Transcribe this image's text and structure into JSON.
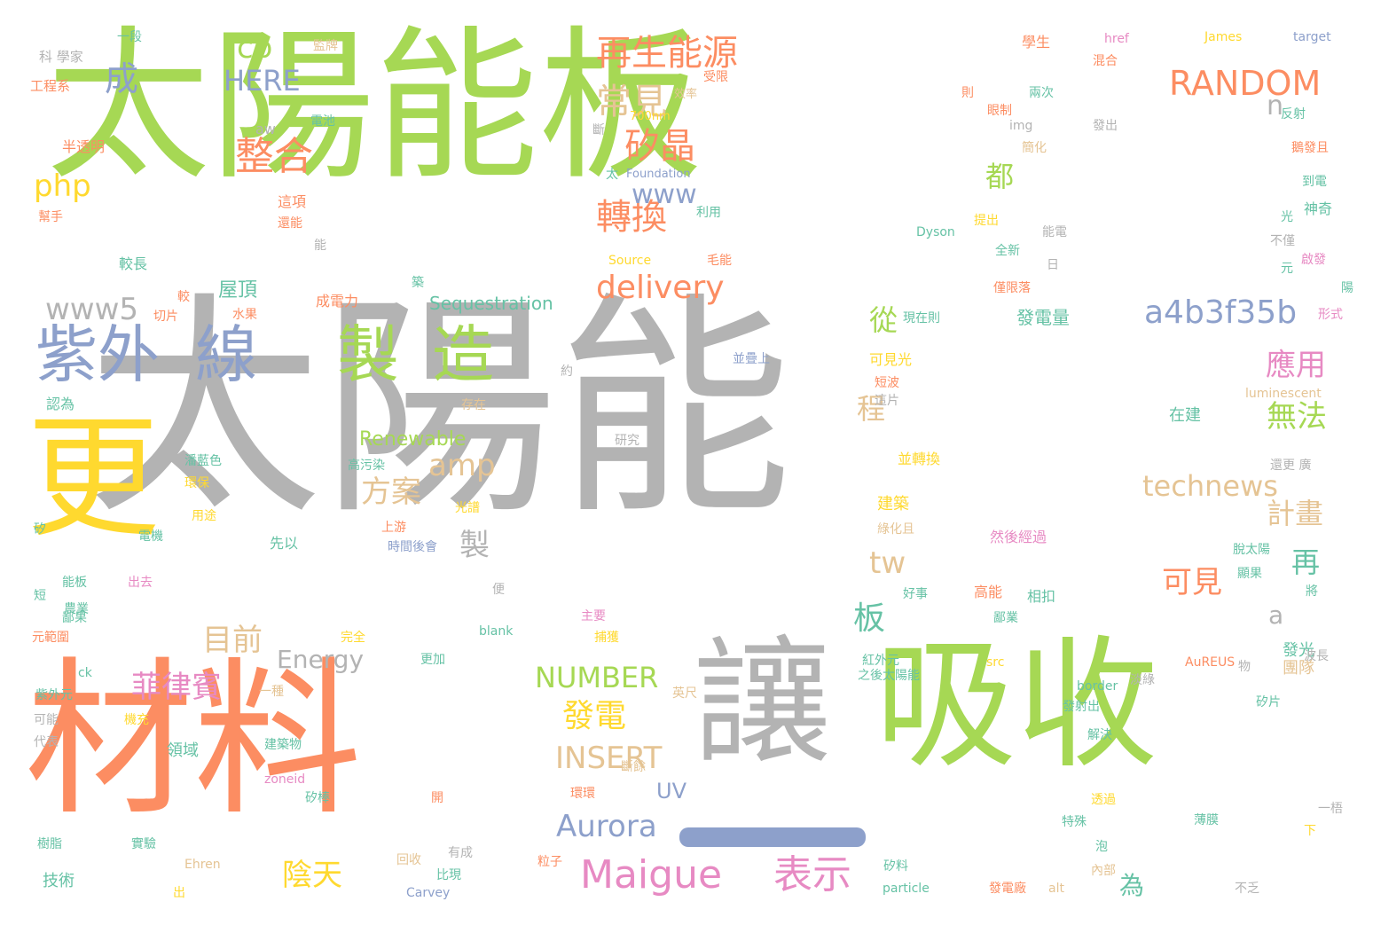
{
  "palette": {
    "green": "#a6d854",
    "gray": "#b3b3b3",
    "orange": "#fc8d62",
    "blue": "#8da0cb",
    "yellow": "#ffd92f",
    "tan": "#e5c494",
    "teal": "#66c2a5",
    "pink": "#e78ac3"
  },
  "underline_bar": "#8da0cb",
  "words": [
    {
      "t": "太陽能板",
      "c": "green"
    },
    {
      "t": "太陽能",
      "c": "gray"
    },
    {
      "t": "材料",
      "c": "orange"
    },
    {
      "t": "吸收",
      "c": "green"
    },
    {
      "t": "讓",
      "c": "gray"
    },
    {
      "t": "更",
      "c": "yellow"
    },
    {
      "t": "紫外",
      "c": "blue"
    },
    {
      "t": "線",
      "c": "blue"
    },
    {
      "t": "製",
      "c": "green"
    },
    {
      "t": "造",
      "c": "green"
    },
    {
      "t": "再生能源",
      "c": "orange"
    },
    {
      "t": "常見",
      "c": "tan"
    },
    {
      "t": "矽晶",
      "c": "orange"
    },
    {
      "t": "轉換",
      "c": "orange"
    },
    {
      "t": "整合",
      "c": "orange"
    },
    {
      "t": "www",
      "c": "blue"
    },
    {
      "t": "RANDOM",
      "c": "orange"
    },
    {
      "t": "n",
      "c": "gray"
    },
    {
      "t": "cb",
      "c": "green"
    },
    {
      "t": "成",
      "c": "blue"
    },
    {
      "t": "HERE",
      "c": "blue"
    },
    {
      "t": "php",
      "c": "yellow"
    },
    {
      "t": "www5",
      "c": "gray"
    },
    {
      "t": "delivery",
      "c": "orange"
    },
    {
      "t": "a4b3f35b",
      "c": "blue"
    },
    {
      "t": "都",
      "c": "green"
    },
    {
      "t": "從",
      "c": "green"
    },
    {
      "t": "應用",
      "c": "pink"
    },
    {
      "t": "無法",
      "c": "green"
    },
    {
      "t": "amp",
      "c": "tan"
    },
    {
      "t": "方案",
      "c": "tan"
    },
    {
      "t": "程",
      "c": "tan"
    },
    {
      "t": "technews",
      "c": "tan"
    },
    {
      "t": "計畫",
      "c": "tan"
    },
    {
      "t": "再",
      "c": "teal"
    },
    {
      "t": "製",
      "c": "gray"
    },
    {
      "t": "tw",
      "c": "tan"
    },
    {
      "t": "可見",
      "c": "orange"
    },
    {
      "t": "板",
      "c": "teal"
    },
    {
      "t": "a",
      "c": "gray"
    },
    {
      "t": "目前",
      "c": "tan"
    },
    {
      "t": "菲律賓",
      "c": "pink"
    },
    {
      "t": "NUMBER",
      "c": "green"
    },
    {
      "t": "發電",
      "c": "yellow"
    },
    {
      "t": "Energy",
      "c": "gray"
    },
    {
      "t": "INSERT",
      "c": "tan"
    },
    {
      "t": "Aurora",
      "c": "blue"
    },
    {
      "t": "Maigue",
      "c": "pink"
    },
    {
      "t": "表示",
      "c": "pink"
    },
    {
      "t": "陰天",
      "c": "yellow"
    },
    {
      "t": "為",
      "c": "teal"
    },
    {
      "t": "UV",
      "c": "blue"
    },
    {
      "t": "屋頂",
      "c": "teal"
    },
    {
      "t": "Renewable",
      "c": "green"
    },
    {
      "t": "Sequestration",
      "c": "teal"
    },
    {
      "t": "發電量",
      "c": "teal"
    },
    {
      "t": "可見光",
      "c": "yellow"
    },
    {
      "t": "在建",
      "c": "teal"
    },
    {
      "t": "發光",
      "c": "teal"
    },
    {
      "t": "團隊",
      "c": "tan"
    },
    {
      "t": "技術",
      "c": "teal"
    },
    {
      "t": "領域",
      "c": "teal"
    },
    {
      "t": "建築",
      "c": "yellow"
    },
    {
      "t": "科 學家",
      "c": "gray"
    },
    {
      "t": "工程系",
      "c": "orange"
    },
    {
      "t": "一段",
      "c": "teal"
    },
    {
      "t": "監牌",
      "c": "tan"
    },
    {
      "t": "半透明",
      "c": "orange"
    },
    {
      "t": "電池",
      "c": "teal"
    },
    {
      "t": "效率",
      "c": "tan"
    },
    {
      "t": "700nm",
      "c": "yellow"
    },
    {
      "t": "受限",
      "c": "orange"
    },
    {
      "t": "這項",
      "c": "orange"
    },
    {
      "t": "還能",
      "c": "orange"
    },
    {
      "t": "利用",
      "c": "teal"
    },
    {
      "t": "較長",
      "c": "teal"
    },
    {
      "t": "較",
      "c": "orange"
    },
    {
      "t": "水果",
      "c": "orange"
    },
    {
      "t": "切片",
      "c": "orange"
    },
    {
      "t": "成電力",
      "c": "orange"
    },
    {
      "t": "認為",
      "c": "teal"
    },
    {
      "t": "存在",
      "c": "tan"
    },
    {
      "t": "潘藍色",
      "c": "teal"
    },
    {
      "t": "環保",
      "c": "yellow"
    },
    {
      "t": "高污染",
      "c": "teal"
    },
    {
      "t": "研究",
      "c": "gray"
    },
    {
      "t": "用途",
      "c": "yellow"
    },
    {
      "t": "光譜",
      "c": "yellow"
    },
    {
      "t": "電機",
      "c": "teal"
    },
    {
      "t": "上游",
      "c": "orange"
    },
    {
      "t": "先以",
      "c": "teal"
    },
    {
      "t": "時間後會",
      "c": "blue"
    },
    {
      "t": "能板",
      "c": "teal"
    },
    {
      "t": "出去",
      "c": "pink"
    },
    {
      "t": "農業",
      "c": "teal"
    },
    {
      "t": "元範圍",
      "c": "orange"
    },
    {
      "t": "主要",
      "c": "pink"
    },
    {
      "t": "捕獲",
      "c": "yellow"
    },
    {
      "t": "完全",
      "c": "yellow"
    },
    {
      "t": "blank",
      "c": "teal"
    },
    {
      "t": "ck",
      "c": "teal"
    },
    {
      "t": "更加",
      "c": "teal"
    },
    {
      "t": "紫外元",
      "c": "teal"
    },
    {
      "t": "一種",
      "c": "tan"
    },
    {
      "t": "可能",
      "c": "gray"
    },
    {
      "t": "機充",
      "c": "yellow"
    },
    {
      "t": "代表",
      "c": "gray"
    },
    {
      "t": "建築物",
      "c": "teal"
    },
    {
      "t": "zoneid",
      "c": "pink"
    },
    {
      "t": "矽棒",
      "c": "teal"
    },
    {
      "t": "開",
      "c": "orange"
    },
    {
      "t": "樹脂",
      "c": "teal"
    },
    {
      "t": "實驗",
      "c": "teal"
    },
    {
      "t": "Ehren",
      "c": "tan"
    },
    {
      "t": "回收",
      "c": "tan"
    },
    {
      "t": "有成",
      "c": "gray"
    },
    {
      "t": "比現",
      "c": "teal"
    },
    {
      "t": "Carvey",
      "c": "blue"
    },
    {
      "t": "出",
      "c": "yellow"
    },
    {
      "t": "img",
      "c": "gray"
    },
    {
      "t": "Foundation",
      "c": "blue"
    },
    {
      "t": "Source",
      "c": "yellow"
    },
    {
      "t": "毛能",
      "c": "orange"
    },
    {
      "t": "Dyson",
      "c": "teal"
    },
    {
      "t": "提出",
      "c": "yellow"
    },
    {
      "t": "全新",
      "c": "teal"
    },
    {
      "t": "僅限落",
      "c": "orange"
    },
    {
      "t": "現在則",
      "c": "teal"
    },
    {
      "t": "並疊上",
      "c": "blue"
    },
    {
      "t": "約",
      "c": "gray"
    },
    {
      "t": "短波",
      "c": "orange"
    },
    {
      "t": "這片",
      "c": "gray"
    },
    {
      "t": "並轉換",
      "c": "yellow"
    },
    {
      "t": "綠化且",
      "c": "tan"
    },
    {
      "t": "然後經過",
      "c": "pink"
    },
    {
      "t": "高能",
      "c": "orange"
    },
    {
      "t": "相扣",
      "c": "teal"
    },
    {
      "t": "好事",
      "c": "teal"
    },
    {
      "t": "之後太陽能",
      "c": "teal"
    },
    {
      "t": "紅外元",
      "c": "teal"
    },
    {
      "t": "英尺",
      "c": "tan"
    },
    {
      "t": "AuREUS",
      "c": "orange"
    },
    {
      "t": "src",
      "c": "yellow"
    },
    {
      "t": "border",
      "c": "teal"
    },
    {
      "t": "發射出",
      "c": "teal"
    },
    {
      "t": "解決",
      "c": "teal"
    },
    {
      "t": "透過",
      "c": "yellow"
    },
    {
      "t": "特殊",
      "c": "teal"
    },
    {
      "t": "薄膜",
      "c": "teal"
    },
    {
      "t": "內部",
      "c": "tan"
    },
    {
      "t": "particle",
      "c": "teal"
    },
    {
      "t": "alt",
      "c": "tan"
    },
    {
      "t": "不乏",
      "c": "gray"
    },
    {
      "t": "發電廠",
      "c": "orange"
    },
    {
      "t": "矽料",
      "c": "teal"
    },
    {
      "t": "環環",
      "c": "orange"
    },
    {
      "t": "斷餘",
      "c": "tan"
    },
    {
      "t": "粒子",
      "c": "orange"
    },
    {
      "t": "學生",
      "c": "orange"
    },
    {
      "t": "href",
      "c": "pink"
    },
    {
      "t": "James",
      "c": "yellow"
    },
    {
      "t": "target",
      "c": "blue"
    },
    {
      "t": "混合",
      "c": "orange"
    },
    {
      "t": "兩次",
      "c": "teal"
    },
    {
      "t": "眼制",
      "c": "orange"
    },
    {
      "t": "反射",
      "c": "teal"
    },
    {
      "t": "發出",
      "c": "gray"
    },
    {
      "t": "簡化",
      "c": "tan"
    },
    {
      "t": "到電",
      "c": "teal"
    },
    {
      "t": "神奇",
      "c": "teal"
    },
    {
      "t": "光",
      "c": "teal"
    },
    {
      "t": "不僅",
      "c": "gray"
    },
    {
      "t": "啟發",
      "c": "pink"
    },
    {
      "t": "形式",
      "c": "pink"
    },
    {
      "t": "luminescent",
      "c": "tan"
    },
    {
      "t": "還更 廣",
      "c": "gray"
    },
    {
      "t": "淡綠",
      "c": "gray"
    },
    {
      "t": "波長",
      "c": "gray"
    },
    {
      "t": "物",
      "c": "gray"
    },
    {
      "t": "矽片",
      "c": "teal"
    },
    {
      "t": "一梧",
      "c": "gray"
    },
    {
      "t": "下",
      "c": "yellow"
    },
    {
      "t": "將",
      "c": "teal"
    },
    {
      "t": "脫太陽",
      "c": "teal"
    },
    {
      "t": "顯果",
      "c": "teal"
    },
    {
      "t": "能電",
      "c": "gray"
    },
    {
      "t": "日",
      "c": "gray"
    },
    {
      "t": "矽",
      "c": "teal"
    },
    {
      "t": "短",
      "c": "teal"
    },
    {
      "t": "便",
      "c": "gray"
    },
    {
      "t": "鄙果",
      "c": "teal"
    },
    {
      "t": "鄙業",
      "c": "teal"
    },
    {
      "t": "泡",
      "c": "teal"
    },
    {
      "t": "則",
      "c": "orange"
    },
    {
      "t": "aw",
      "c": "gray"
    },
    {
      "t": "斷",
      "c": "gray"
    },
    {
      "t": "陽",
      "c": "teal"
    },
    {
      "t": "太",
      "c": "teal"
    },
    {
      "t": "幫手",
      "c": "orange"
    },
    {
      "t": "築",
      "c": "teal"
    },
    {
      "t": "鵝發且",
      "c": "orange"
    },
    {
      "t": "能",
      "c": "gray"
    },
    {
      "t": "元",
      "c": "teal"
    }
  ]
}
